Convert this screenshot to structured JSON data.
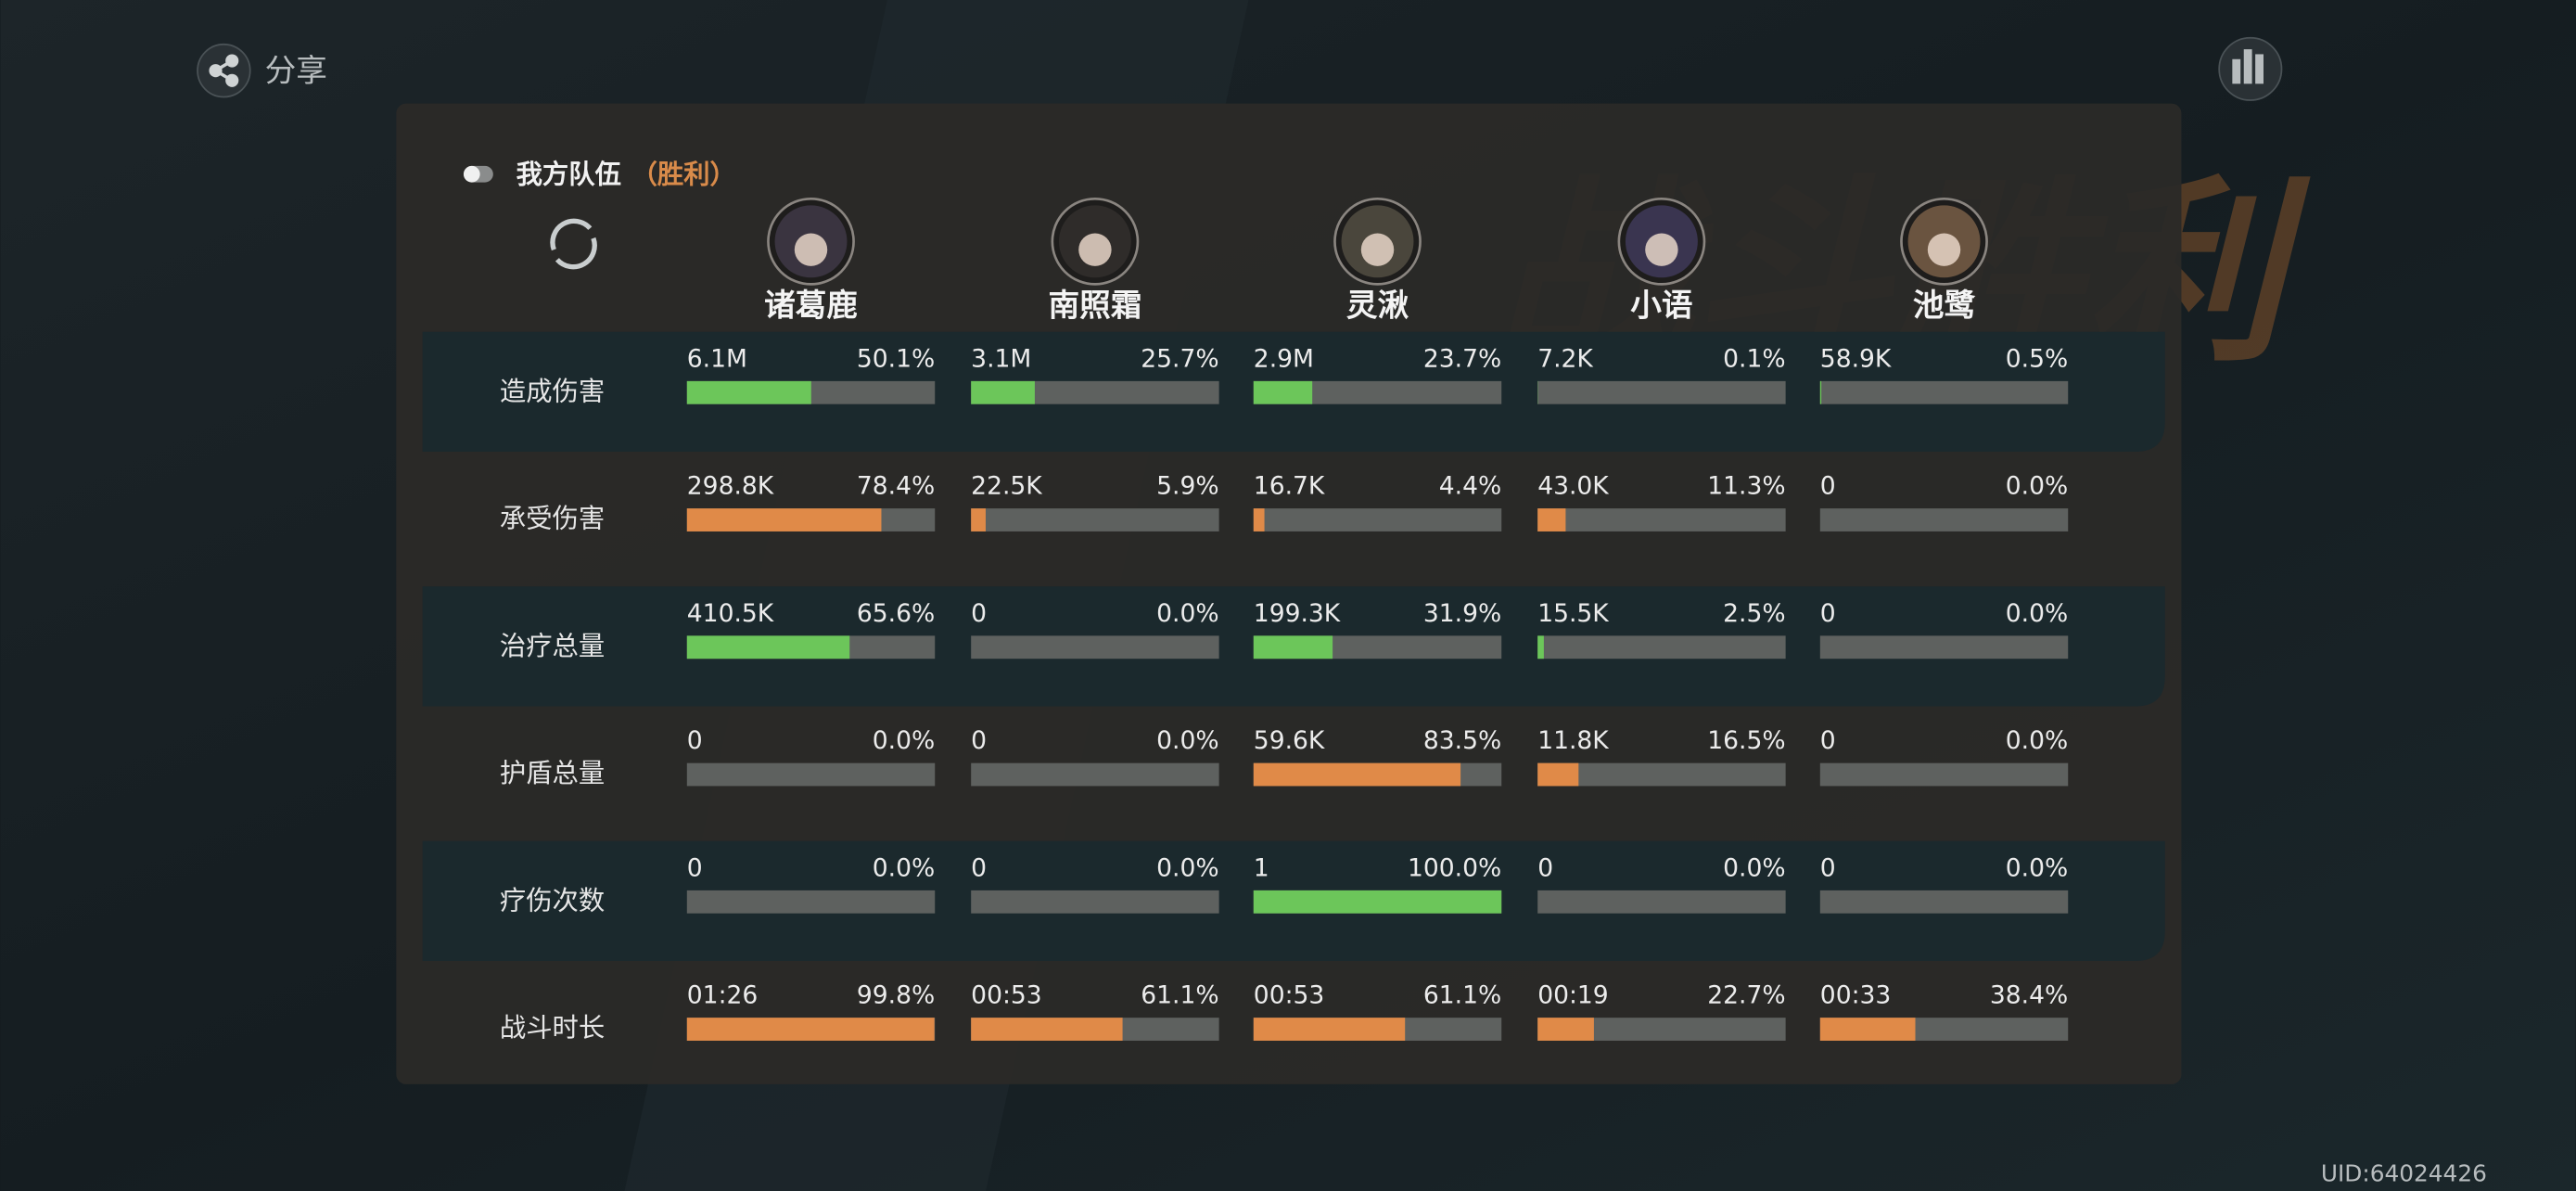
{
  "header": {
    "share": "分享",
    "watermark": "战斗胜利",
    "team": "我方队伍",
    "result": "（胜利）",
    "uid": "UID:64024426"
  },
  "characters": [
    "诸葛鹿",
    "南照霜",
    "灵湫",
    "小语",
    "池鹭"
  ],
  "rows": [
    {
      "label": "造成伤害",
      "bar_color": "#6cc65a",
      "amounts": [
        "6.1M",
        "3.1M",
        "2.9M",
        "7.2K",
        "58.9K"
      ],
      "shares": [
        50.1,
        25.7,
        23.7,
        0.1,
        0.5
      ],
      "share_labels": [
        "50.1%",
        "25.7%",
        "23.7%",
        "0.1%",
        "0.5%"
      ]
    },
    {
      "label": "承受伤害",
      "bar_color": "#e08a48",
      "amounts": [
        "298.8K",
        "22.5K",
        "16.7K",
        "43.0K",
        "0"
      ],
      "shares": [
        78.4,
        5.9,
        4.4,
        11.3,
        0.0
      ],
      "share_labels": [
        "78.4%",
        "5.9%",
        "4.4%",
        "11.3%",
        "0.0%"
      ]
    },
    {
      "label": "治疗总量",
      "bar_color": "#6cc65a",
      "amounts": [
        "410.5K",
        "0",
        "199.3K",
        "15.5K",
        "0"
      ],
      "shares": [
        65.6,
        0.0,
        31.9,
        2.5,
        0.0
      ],
      "share_labels": [
        "65.6%",
        "0.0%",
        "31.9%",
        "2.5%",
        "0.0%"
      ]
    },
    {
      "label": "护盾总量",
      "bar_color": "#e08a48",
      "amounts": [
        "0",
        "0",
        "59.6K",
        "11.8K",
        "0"
      ],
      "shares": [
        0.0,
        0.0,
        83.5,
        16.5,
        0.0
      ],
      "share_labels": [
        "0.0%",
        "0.0%",
        "83.5%",
        "16.5%",
        "0.0%"
      ]
    },
    {
      "label": "疗伤次数",
      "bar_color": "#6cc65a",
      "amounts": [
        "0",
        "0",
        "1",
        "0",
        "0"
      ],
      "shares": [
        0.0,
        0.0,
        100.0,
        0.0,
        0.0
      ],
      "share_labels": [
        "0.0%",
        "0.0%",
        "100.0%",
        "0.0%",
        "0.0%"
      ]
    },
    {
      "label": "战斗时长",
      "bar_color": "#e08a48",
      "amounts": [
        "01:26",
        "00:53",
        "00:53",
        "00:19",
        "00:33"
      ],
      "shares": [
        99.8,
        61.1,
        61.1,
        22.7,
        38.4
      ],
      "share_labels": [
        "99.8%",
        "61.1%",
        "61.1%",
        "22.7%",
        "38.4%"
      ]
    }
  ]
}
